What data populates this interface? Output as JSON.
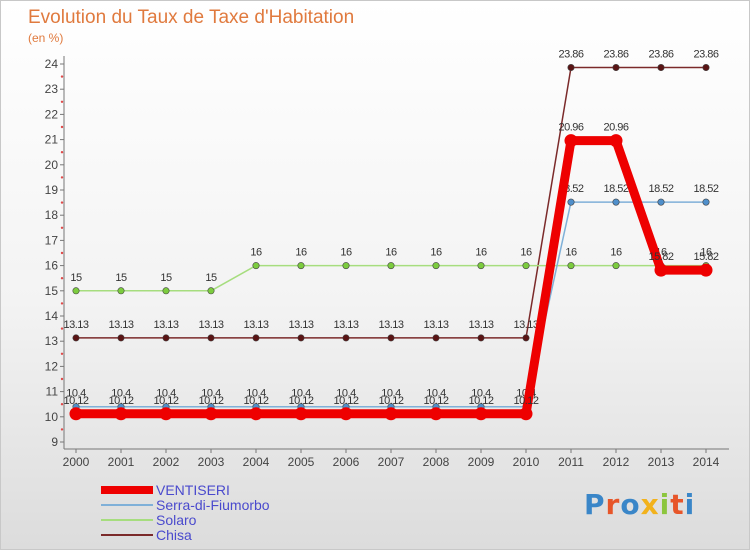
{
  "header": {
    "title": "Evolution du Taux de Taxe d'Habitation",
    "subtitle": "(en %)"
  },
  "chart_data": {
    "type": "line",
    "title": "Evolution du Taux de Taxe d'Habitation",
    "ylabel": "(en %)",
    "xlabel": "",
    "categories": [
      "2000",
      "2001",
      "2002",
      "2003",
      "2004",
      "2005",
      "2006",
      "2007",
      "2008",
      "2009",
      "2010",
      "2011",
      "2012",
      "2013",
      "2014"
    ],
    "ylim": [
      9,
      24
    ],
    "yticks": [
      9,
      10,
      11,
      12,
      13,
      14,
      15,
      16,
      17,
      18,
      19,
      20,
      21,
      22,
      23,
      24
    ],
    "grid": false,
    "legend_position": "bottom-left",
    "series": [
      {
        "name": "Chisa",
        "color": "#7b2a2a",
        "point_color": "#5a1414",
        "values": [
          13.13,
          13.13,
          13.13,
          13.13,
          13.13,
          13.13,
          13.13,
          13.13,
          13.13,
          13.13,
          13.13,
          23.86,
          23.86,
          23.86,
          23.86
        ],
        "labels": [
          "13.13",
          "13.13",
          "13.13",
          "13.13",
          "13.13",
          "13.13",
          "13.13",
          "13.13",
          "13.13",
          "13.13",
          "13.13",
          "23.86",
          "23.86",
          "23.86",
          "23.86"
        ]
      },
      {
        "name": "Solaro",
        "color": "#a6dd7e",
        "point_color": "#7ccc3e",
        "values": [
          15,
          15,
          15,
          15,
          16,
          16,
          16,
          16,
          16,
          16,
          16,
          16,
          16,
          16,
          16
        ],
        "labels": [
          "15",
          "15",
          "15",
          "15",
          "16",
          "16",
          "16",
          "16",
          "16",
          "16",
          "16",
          "16",
          "16",
          "16",
          "16"
        ]
      },
      {
        "name": "Serra-di-Fiumorbo",
        "color": "#7fb0d8",
        "point_color": "#4f8fcb",
        "values": [
          10.4,
          10.4,
          10.4,
          10.4,
          10.4,
          10.4,
          10.4,
          10.4,
          10.4,
          10.4,
          10.4,
          18.52,
          18.52,
          18.52,
          18.52
        ],
        "labels": [
          "10.4",
          "10.4",
          "10.4",
          "10.4",
          "10.4",
          "10.4",
          "10.4",
          "10.4",
          "10.4",
          "10.4",
          "10.4",
          "18.52",
          "18.52",
          "18.52",
          "18.52"
        ]
      },
      {
        "name": "VENTISERI",
        "color": "#ee0000",
        "point_color": "#ee0000",
        "values": [
          10.12,
          10.12,
          10.12,
          10.12,
          10.12,
          10.12,
          10.12,
          10.12,
          10.12,
          10.12,
          10.12,
          20.96,
          20.96,
          15.82,
          15.82
        ],
        "labels": [
          "10.12",
          "10.12",
          "10.12",
          "10.12",
          "10.12",
          "10.12",
          "10.12",
          "10.12",
          "10.12",
          "10.12",
          "10.12",
          "20.96",
          "20.96",
          "15.82",
          "15.82"
        ]
      }
    ]
  },
  "legend": {
    "items": [
      {
        "label": "VENTISERI",
        "color": "#ee0000",
        "thickness": 8
      },
      {
        "label": "Serra-di-Fiumorbo",
        "color": "#7fb0d8",
        "thickness": 2
      },
      {
        "label": "Solaro",
        "color": "#a6dd7e",
        "thickness": 2
      },
      {
        "label": "Chisa",
        "color": "#7b2a2a",
        "thickness": 2
      }
    ]
  },
  "logo": {
    "letters": [
      "P",
      "r",
      "o",
      "x",
      "i",
      "t",
      "i"
    ],
    "colors": [
      "#3a86c8",
      "#e7562a",
      "#3a86c8",
      "#f2b21c",
      "#8cc63e",
      "#e7562a",
      "#3a86c8"
    ]
  }
}
